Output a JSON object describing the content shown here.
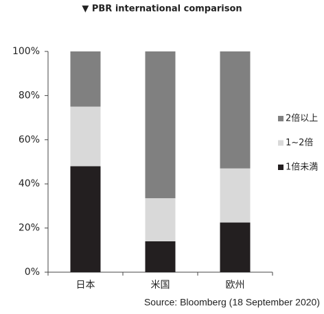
{
  "chart_data": {
    "type": "stacked_bar",
    "title": "▼ PBR international comparison",
    "categories": [
      "日本",
      "米国",
      "欧州"
    ],
    "series": [
      {
        "name": "1倍未満",
        "color": "#231f20",
        "values": [
          48,
          14,
          22.5
        ]
      },
      {
        "name": "1~2倍",
        "color": "#d9d9d9",
        "values": [
          27,
          19.5,
          24.5
        ]
      },
      {
        "name": "2倍以上",
        "color": "#808080",
        "values": [
          25,
          66.5,
          53
        ]
      }
    ],
    "ylim": [
      0,
      100
    ],
    "yticks": [
      {
        "value": 0,
        "label": "0%"
      },
      {
        "value": 20,
        "label": "20%"
      },
      {
        "value": 40,
        "label": "40%"
      },
      {
        "value": 60,
        "label": "60%"
      },
      {
        "value": 80,
        "label": "80%"
      },
      {
        "value": 100,
        "label": "100%"
      }
    ],
    "legend": "right",
    "source": "Source: Bloomberg (18 September 2020)"
  }
}
